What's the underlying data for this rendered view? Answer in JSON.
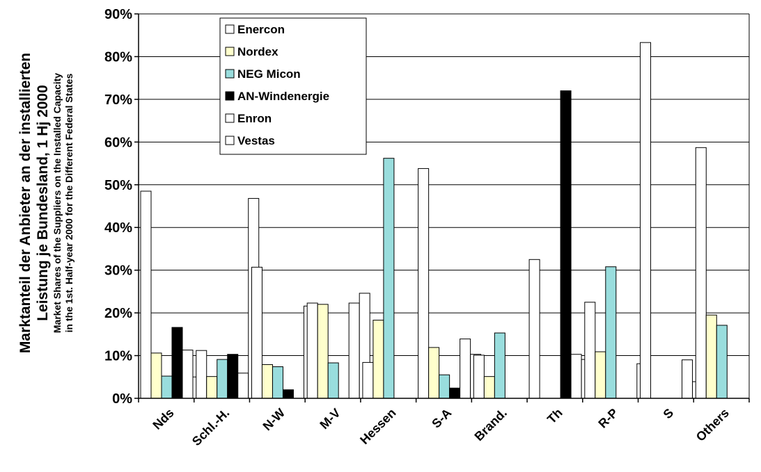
{
  "chart_data": {
    "type": "bar",
    "title": "",
    "ylabel": "Marktanteil der Anbieter an der installierten Leistung je Bundesland, 1 Hj 2000",
    "ylabel_sub": "Market Shares of the Suppliers on the Installed Capacity in the 1st. Half-year 2000 for the Different Federal States",
    "ylabel_lines": [
      "Marktanteil der Anbieter an der installierten",
      "Leistung je Bundesland, 1 Hj 2000"
    ],
    "ylabel_sub_lines": [
      "Market Shares of the Suppliers on the Installed Capacity",
      "in the 1st. Half-year 2000 for the Different Federal States"
    ],
    "xlabel": "",
    "ylim": [
      0,
      90
    ],
    "yticks": [
      "0%",
      "10%",
      "20%",
      "30%",
      "40%",
      "50%",
      "60%",
      "70%",
      "80%",
      "90%"
    ],
    "grid": true,
    "legend_position": "top-left",
    "categories": [
      "Nds",
      "Schl.-H.",
      "N-W",
      "M-V",
      "Hessen",
      "S-A",
      "Brand.",
      "Th",
      "R-P",
      "S",
      "Others"
    ],
    "series": [
      {
        "name": "Enercon",
        "color": "#ffffff",
        "values": [
          48.5,
          11.2,
          30.7,
          22.3,
          8.4,
          53.8,
          10.1,
          32.5,
          22.5,
          83.3,
          58.7
        ]
      },
      {
        "name": "Nordex",
        "color": "#ffffcc",
        "values": [
          10.6,
          5.1,
          7.9,
          22.0,
          18.3,
          11.9,
          5.1,
          0,
          10.9,
          0,
          19.5
        ]
      },
      {
        "name": "NEG Micon",
        "color": "#99dddd",
        "values": [
          5.2,
          9.1,
          7.4,
          8.3,
          56.2,
          5.5,
          15.3,
          0,
          30.8,
          0,
          17.1
        ]
      },
      {
        "name": "AN-Windenergie",
        "color": "#000000",
        "values": [
          16.6,
          10.3,
          2.0,
          0,
          0,
          2.4,
          0,
          72.0,
          0,
          0,
          0
        ]
      },
      {
        "name": "Enron",
        "color": "#ffffff",
        "values": [
          11.3,
          5.9,
          0,
          22.3,
          0,
          13.9,
          0,
          10.3,
          0,
          9.0,
          0
        ]
      },
      {
        "name": "Vestas",
        "color": "#ffffff",
        "values": [
          5.0,
          46.8,
          21.6,
          24.6,
          0,
          10.3,
          0,
          9.1,
          8.1,
          3.9,
          0
        ]
      }
    ]
  }
}
